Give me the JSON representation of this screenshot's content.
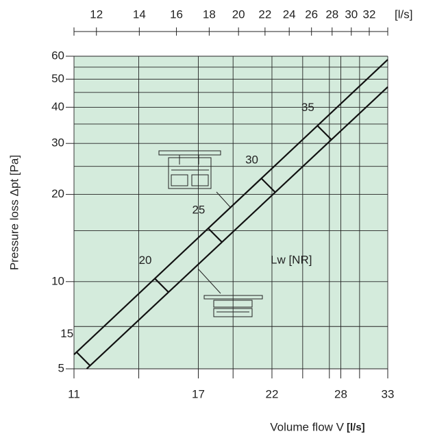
{
  "chart_data": {
    "type": "line",
    "x_label": "Volume flow V",
    "x_unit": "[l/s]",
    "x2_unit": "[l/s]",
    "y_label": "Pressure loss Δpt [Pa]",
    "log_x": true,
    "log_y": true,
    "grid": true,
    "background": "#d4ebdc",
    "xlim": [
      11,
      33
    ],
    "xticks": [
      11,
      17,
      22,
      28,
      33
    ],
    "xminor": [
      13.8,
      19.2,
      24.5,
      26.9,
      29.9
    ],
    "x2lim": [
      11.07,
      34.2
    ],
    "x2ticks": [
      12,
      14,
      16,
      18,
      20,
      22,
      24,
      26,
      28,
      30,
      32
    ],
    "ylim": [
      5,
      60
    ],
    "yticks": [
      5,
      10,
      20,
      30,
      40,
      50,
      60
    ],
    "yminor": [
      7,
      15,
      25,
      35,
      45,
      55
    ],
    "series": [
      {
        "color": "#111",
        "x": [
          11,
          33
        ],
        "values": [
          5.6,
          58.4
        ]
      },
      {
        "color": "#111",
        "x": [
          11.5,
          33
        ],
        "values": [
          5,
          47
        ]
      }
    ],
    "nr_label": "Lw [NR]",
    "nr_marks": {
      "x": [
        11.1,
        14.6,
        17.6,
        21.2,
        25.8
      ],
      "labels": [
        15,
        20,
        25,
        30,
        35
      ]
    }
  }
}
